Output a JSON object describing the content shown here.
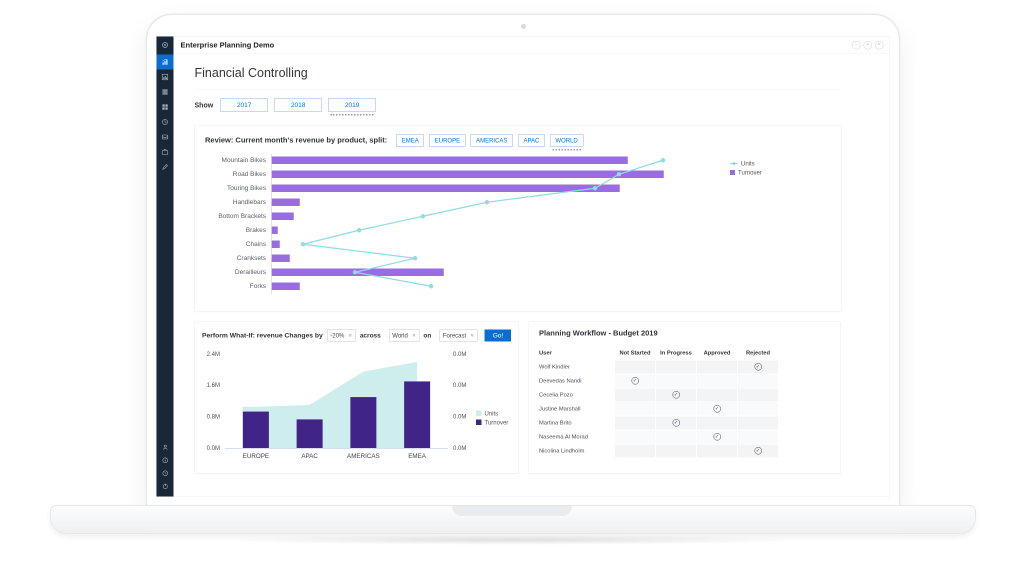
{
  "window": {
    "title": "Enterprise Planning Demo",
    "controls": [
      {
        "name": "minimize",
        "glyph": "−"
      },
      {
        "name": "maximize",
        "glyph": "+"
      },
      {
        "name": "close",
        "glyph": "×"
      }
    ]
  },
  "sidebar": {
    "top_icons": [
      {
        "name": "target-logo-icon",
        "active": false,
        "logo": true
      },
      {
        "name": "story-chart-icon",
        "active": true,
        "logo": false
      },
      {
        "name": "bar-chart-icon",
        "active": false,
        "logo": false
      },
      {
        "name": "list-rows-icon",
        "active": false,
        "logo": false
      },
      {
        "name": "grid-icon",
        "active": false,
        "logo": false
      },
      {
        "name": "clock-icon",
        "active": false,
        "logo": false
      },
      {
        "name": "tray-icon",
        "active": false,
        "logo": false
      },
      {
        "name": "briefcase-icon",
        "active": false,
        "logo": false
      },
      {
        "name": "pen-icon",
        "active": false,
        "logo": false
      }
    ],
    "bottom_icons": [
      {
        "name": "person-icon"
      },
      {
        "name": "info-icon"
      },
      {
        "name": "help-icon"
      },
      {
        "name": "power-icon"
      }
    ]
  },
  "page": {
    "title": "Financial Controlling"
  },
  "show": {
    "label": "Show",
    "years": [
      "2017",
      "2018",
      "2019"
    ],
    "selected": "2019"
  },
  "review": {
    "title": "Review: Current month's revenue by product, split:",
    "regions": [
      "EMEA",
      "EUROPE",
      "AMERICAS",
      "APAC",
      "WORLD"
    ],
    "selected": "WORLD"
  },
  "whatif": {
    "prefix": "Perform What-If: revenue Changes by",
    "change_value": "-20%",
    "across_label": "across",
    "across_value": "World",
    "on_label": "on",
    "on_value": "Forecast",
    "go_label": "Go!"
  },
  "workflow": {
    "title": "Planning Workflow - Budget 2019",
    "columns": [
      "User",
      "Not Started",
      "In Progress",
      "Approved",
      "Rejected"
    ],
    "rows": [
      {
        "user": "Wolf Kindler",
        "status": "Rejected"
      },
      {
        "user": "Deevedas Nandi",
        "status": "Not Started"
      },
      {
        "user": "Cecelia Pozo",
        "status": "In Progress"
      },
      {
        "user": "Justine Marshall",
        "status": "Approved"
      },
      {
        "user": "Martina Brito",
        "status": "In Progress"
      },
      {
        "user": "Naseema Al Morad",
        "status": "Approved"
      },
      {
        "user": "Nicolina Lindholm",
        "status": "Rejected"
      }
    ]
  },
  "chart_data": [
    {
      "type": "bar",
      "subtype": "horizontal-bars-with-line-overlay",
      "title": "Review: Current month's revenue by product, split: WORLD",
      "categories": [
        "Mountain Bikes",
        "Road Bikes",
        "Touring Bikes",
        "Handlebars",
        "Bottom Brackets",
        "Brakes",
        "Chains",
        "Cranksets",
        "Derailleurs",
        "Forks"
      ],
      "series": [
        {
          "name": "Turnover",
          "type": "bar",
          "color": "#9a6ce1",
          "values_pct_of_axis": [
            89,
            98,
            87,
            7,
            5.5,
            1.5,
            2,
            4.5,
            43,
            7
          ]
        },
        {
          "name": "Units",
          "type": "line",
          "color": "#8edce6",
          "values_pct_of_axis": [
            98,
            87,
            81,
            54,
            38,
            22,
            8,
            36,
            21,
            40
          ]
        }
      ],
      "legend_position": "right",
      "value_axis_labels_visible": false,
      "grid": false
    },
    {
      "type": "combo",
      "title": "Perform What-If result",
      "categories": [
        "EUROPE",
        "APAC",
        "AMERICAS",
        "EMEA"
      ],
      "series": [
        {
          "name": "Units",
          "type": "area",
          "color": "#cdeeed",
          "values_M": [
            1.05,
            1.1,
            1.95,
            2.2
          ]
        },
        {
          "name": "Turnover",
          "type": "bar",
          "color": "#412487",
          "values_M": [
            0.93,
            0.73,
            1.3,
            1.7
          ]
        }
      ],
      "left_axis_ticks": [
        "2.4M",
        "1.6M",
        "0.8M",
        "0.0M"
      ],
      "right_axis_ticks": [
        "0.0M",
        "0.0M",
        "0.0M",
        "0.0M"
      ],
      "ylim": [
        0,
        2.4
      ],
      "legend_position": "right",
      "grid": false
    }
  ],
  "colors": {
    "accent_blue": "#0a6ed1",
    "bar_purple": "#9a6ce1",
    "line_cyan": "#8edce6",
    "area_cyan": "#cdeeed",
    "bar_dark_purple": "#412487",
    "sidebar_bg": "#182838"
  }
}
